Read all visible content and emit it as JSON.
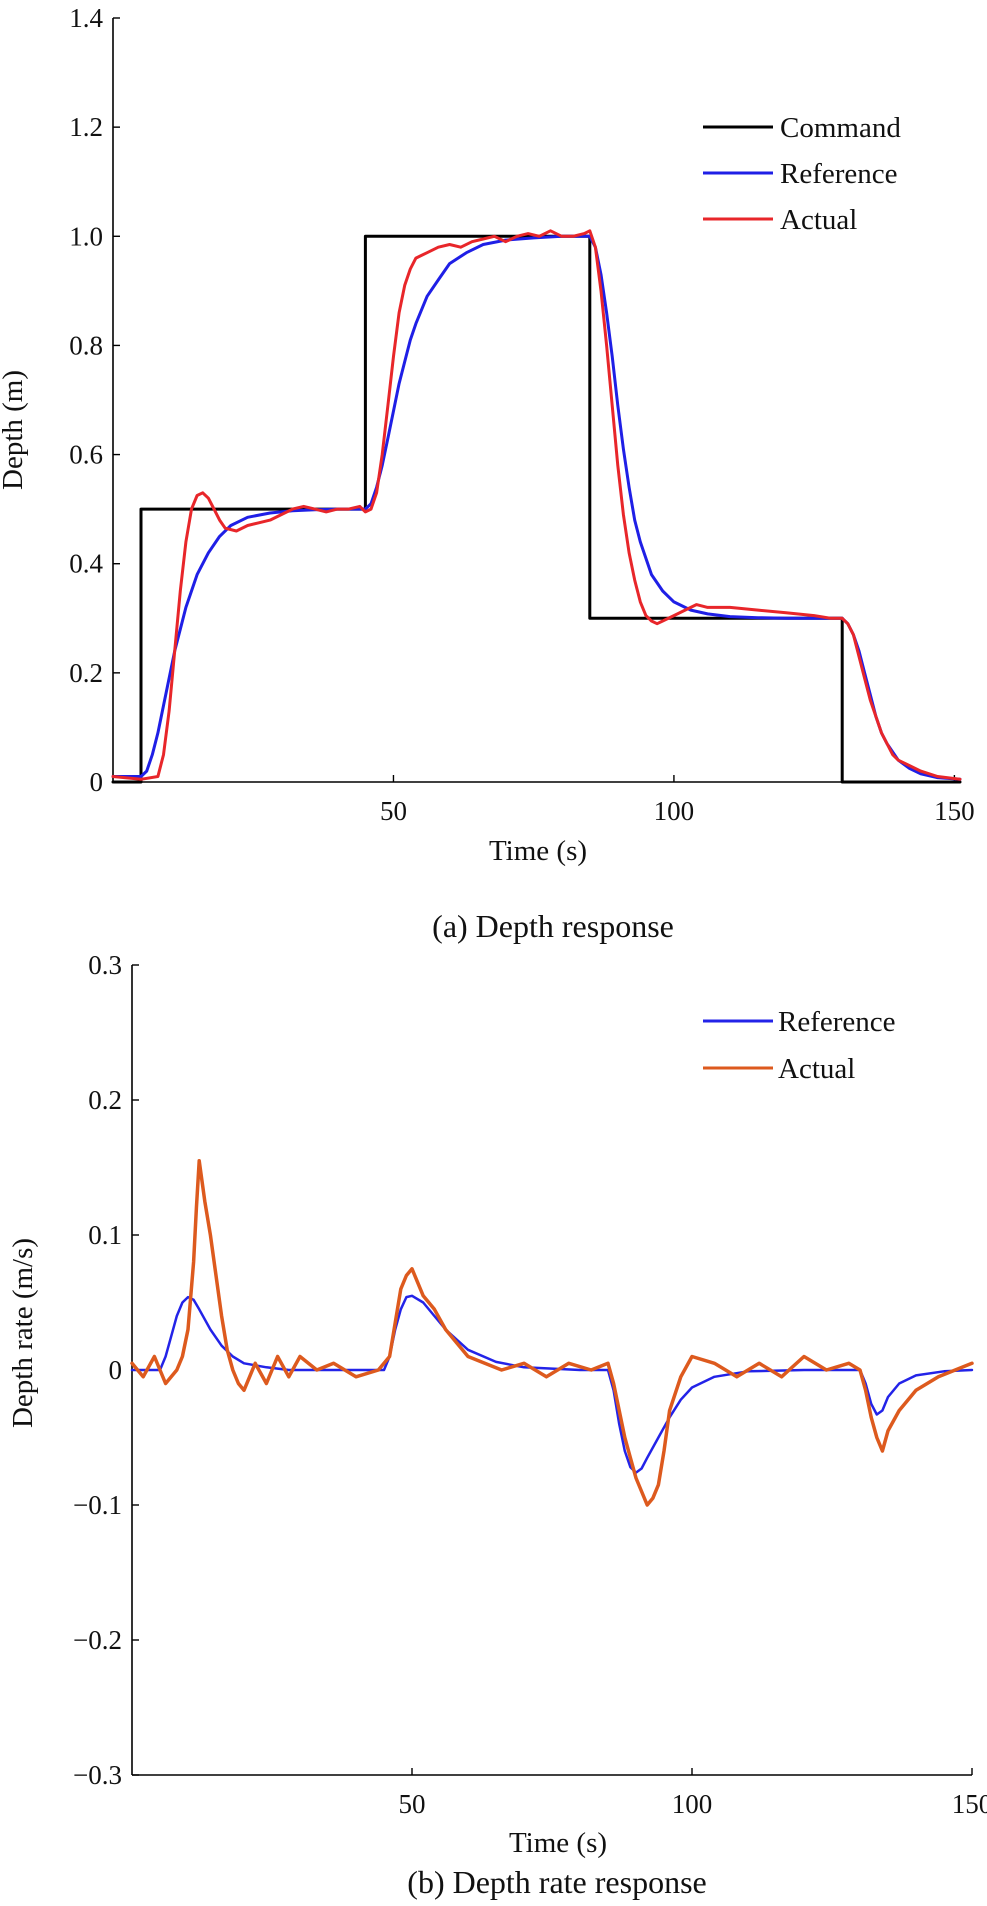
{
  "chart_data": [
    {
      "type": "line",
      "caption": "(a) Depth response",
      "xlabel": "Time (s)",
      "ylabel": "Depth (m)",
      "xlim": [
        0,
        151
      ],
      "ylim": [
        0,
        1.4
      ],
      "xticks": [
        50,
        100,
        150
      ],
      "xtick_labels": [
        "50",
        "100",
        "150"
      ],
      "yticks": [
        0,
        0.2,
        0.4,
        0.6,
        0.8,
        1.0,
        1.2,
        1.4
      ],
      "ytick_labels": [
        "0",
        "0.2",
        "0.4",
        "0.6",
        "0.8",
        "1.0",
        "1.2",
        "1.4"
      ],
      "legend_position": "top-right",
      "series": [
        {
          "name": "Command",
          "color": "#000000",
          "x": [
            0,
            5,
            5,
            45,
            45,
            85,
            85,
            130,
            130,
            151
          ],
          "y": [
            0,
            0,
            0.5,
            0.5,
            1.0,
            1.0,
            0.3,
            0.3,
            0,
            0
          ]
        },
        {
          "name": "Reference",
          "color": "#1f1fe6",
          "x": [
            0,
            5,
            6,
            7,
            8,
            9,
            10,
            11,
            12,
            13,
            14,
            15,
            17,
            19,
            21,
            24,
            28,
            32,
            36,
            40,
            45,
            46,
            47,
            48,
            49,
            50,
            51,
            52,
            53,
            54,
            56,
            58,
            60,
            63,
            66,
            70,
            75,
            80,
            85,
            86,
            87,
            88,
            89,
            90,
            91,
            92,
            93,
            94,
            96,
            98,
            100,
            103,
            106,
            110,
            115,
            120,
            125,
            130,
            131,
            132,
            133,
            134,
            135,
            136,
            137,
            138,
            140,
            142,
            144,
            147,
            151
          ],
          "y": [
            0.01,
            0.01,
            0.02,
            0.05,
            0.09,
            0.14,
            0.19,
            0.24,
            0.28,
            0.32,
            0.35,
            0.38,
            0.42,
            0.45,
            0.47,
            0.485,
            0.493,
            0.497,
            0.499,
            0.5,
            0.5,
            0.51,
            0.54,
            0.58,
            0.63,
            0.68,
            0.73,
            0.77,
            0.81,
            0.84,
            0.89,
            0.92,
            0.95,
            0.97,
            0.985,
            0.993,
            0.997,
            1.0,
            1.0,
            0.98,
            0.93,
            0.86,
            0.78,
            0.69,
            0.61,
            0.54,
            0.48,
            0.44,
            0.38,
            0.35,
            0.33,
            0.315,
            0.308,
            0.303,
            0.301,
            0.3,
            0.3,
            0.3,
            0.29,
            0.27,
            0.24,
            0.2,
            0.16,
            0.12,
            0.09,
            0.07,
            0.04,
            0.025,
            0.015,
            0.008,
            0.005
          ]
        },
        {
          "name": "Actual",
          "color": "#e8262a",
          "x": [
            0,
            5,
            8,
            9,
            10,
            11,
            12,
            13,
            14,
            15,
            16,
            17,
            18,
            19,
            20,
            22,
            24,
            26,
            28,
            30,
            32,
            34,
            36,
            38,
            40,
            42,
            44,
            45,
            46,
            47,
            48,
            49,
            50,
            51,
            52,
            53,
            54,
            55,
            56,
            58,
            60,
            62,
            64,
            66,
            68,
            70,
            72,
            74,
            76,
            78,
            80,
            82,
            84,
            85,
            86,
            87,
            88,
            89,
            90,
            91,
            92,
            93,
            94,
            95,
            96,
            97,
            98,
            100,
            102,
            104,
            106,
            110,
            115,
            120,
            125,
            128,
            130,
            131,
            132,
            133,
            134,
            135,
            136,
            137,
            138,
            139,
            140,
            142,
            144,
            147,
            151
          ],
          "y": [
            0.01,
            0.005,
            0.01,
            0.05,
            0.13,
            0.24,
            0.35,
            0.44,
            0.5,
            0.525,
            0.53,
            0.52,
            0.5,
            0.48,
            0.465,
            0.46,
            0.47,
            0.475,
            0.48,
            0.49,
            0.5,
            0.505,
            0.5,
            0.495,
            0.5,
            0.5,
            0.505,
            0.495,
            0.5,
            0.53,
            0.6,
            0.69,
            0.78,
            0.86,
            0.91,
            0.94,
            0.96,
            0.965,
            0.97,
            0.98,
            0.985,
            0.98,
            0.99,
            0.995,
            1.0,
            0.99,
            1.0,
            1.005,
            1.0,
            1.01,
            1.0,
            1.0,
            1.005,
            1.01,
            0.98,
            0.9,
            0.8,
            0.69,
            0.58,
            0.49,
            0.42,
            0.37,
            0.33,
            0.305,
            0.295,
            0.29,
            0.295,
            0.305,
            0.315,
            0.325,
            0.32,
            0.32,
            0.315,
            0.31,
            0.305,
            0.3,
            0.3,
            0.29,
            0.27,
            0.23,
            0.19,
            0.15,
            0.12,
            0.09,
            0.07,
            0.05,
            0.04,
            0.03,
            0.02,
            0.01,
            0.005
          ]
        }
      ]
    },
    {
      "type": "line",
      "caption": "(b) Depth rate response",
      "xlabel": "Time (s)",
      "ylabel": "Depth rate (m/s)",
      "xlim": [
        0,
        150
      ],
      "ylim": [
        -0.3,
        0.3
      ],
      "xticks": [
        50,
        100,
        150
      ],
      "xtick_labels": [
        "50",
        "100",
        "150"
      ],
      "yticks": [
        -0.3,
        -0.2,
        -0.1,
        0,
        0.1,
        0.2,
        0.3
      ],
      "ytick_labels": [
        "−0.3",
        "−0.2",
        "−0.1",
        "0",
        "0.1",
        "0.2",
        "0.3"
      ],
      "legend_position": "top-right",
      "series": [
        {
          "name": "Reference",
          "color": "#2323e8",
          "x": [
            0,
            5,
            6,
            7,
            8,
            9,
            10,
            11,
            12,
            14,
            16,
            18,
            20,
            24,
            28,
            32,
            40,
            45,
            46,
            47,
            48,
            49,
            50,
            52,
            54,
            56,
            60,
            65,
            70,
            80,
            85,
            86,
            87,
            88,
            89,
            90,
            91,
            92,
            94,
            96,
            98,
            100,
            104,
            110,
            120,
            130,
            131,
            132,
            133,
            134,
            135,
            137,
            140,
            145,
            150
          ],
          "y": [
            0,
            0,
            0.01,
            0.025,
            0.04,
            0.05,
            0.054,
            0.052,
            0.045,
            0.03,
            0.018,
            0.01,
            0.005,
            0.002,
            0,
            0,
            0,
            0,
            0.01,
            0.03,
            0.045,
            0.054,
            0.055,
            0.05,
            0.04,
            0.03,
            0.015,
            0.006,
            0.002,
            0,
            0,
            -0.015,
            -0.04,
            -0.06,
            -0.072,
            -0.076,
            -0.073,
            -0.065,
            -0.05,
            -0.035,
            -0.022,
            -0.013,
            -0.005,
            -0.001,
            0,
            0,
            -0.01,
            -0.025,
            -0.033,
            -0.03,
            -0.02,
            -0.01,
            -0.004,
            -0.001,
            0
          ]
        },
        {
          "name": "Actual",
          "color": "#dd5a1e",
          "x": [
            0,
            2,
            4,
            6,
            8,
            9,
            10,
            11,
            11.5,
            12,
            12.5,
            13,
            14,
            15,
            16,
            17,
            18,
            19,
            20,
            22,
            24,
            26,
            28,
            30,
            33,
            36,
            40,
            44,
            46,
            47,
            48,
            49,
            50,
            51,
            52,
            54,
            56,
            58,
            60,
            63,
            66,
            70,
            74,
            78,
            82,
            85,
            86,
            87,
            88,
            89,
            90,
            91,
            92,
            93,
            94,
            95,
            96,
            98,
            100,
            104,
            108,
            112,
            116,
            120,
            124,
            128,
            130,
            131,
            132,
            133,
            134,
            135,
            137,
            140,
            144,
            147,
            150
          ],
          "y": [
            0.005,
            -0.005,
            0.01,
            -0.01,
            0,
            0.01,
            0.03,
            0.08,
            0.12,
            0.155,
            0.14,
            0.125,
            0.1,
            0.07,
            0.04,
            0.015,
            0,
            -0.01,
            -0.015,
            0.005,
            -0.01,
            0.01,
            -0.005,
            0.01,
            0,
            0.005,
            -0.005,
            0,
            0.01,
            0.035,
            0.06,
            0.07,
            0.075,
            0.065,
            0.055,
            0.045,
            0.03,
            0.02,
            0.01,
            0.005,
            0,
            0.005,
            -0.005,
            0.005,
            0,
            0.005,
            -0.01,
            -0.03,
            -0.05,
            -0.065,
            -0.08,
            -0.09,
            -0.1,
            -0.095,
            -0.085,
            -0.06,
            -0.03,
            -0.005,
            0.01,
            0.005,
            -0.005,
            0.005,
            -0.005,
            0.01,
            0,
            0.005,
            0,
            -0.015,
            -0.035,
            -0.05,
            -0.06,
            -0.045,
            -0.03,
            -0.015,
            -0.005,
            0,
            0.005
          ]
        }
      ]
    }
  ]
}
